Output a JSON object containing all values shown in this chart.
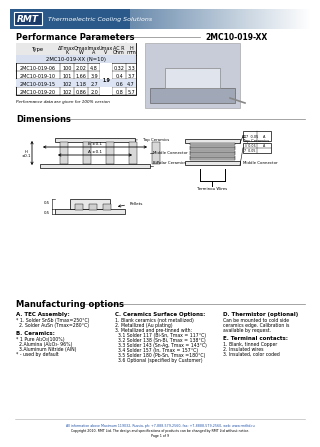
{
  "title": "2MC10-019-XX",
  "section_perf": "Performance Parameters",
  "section_dim": "Dimensions",
  "section_mfg": "Manufacturing options",
  "header_bg": "#2b5a8a",
  "table_headers_row1": [
    "Type",
    "ΔTmax",
    "Qmax",
    "Imax",
    "Umax",
    "AC R",
    "H"
  ],
  "table_headers_row2": [
    "",
    "K",
    "W",
    "A",
    "V",
    "Ohm",
    "mm"
  ],
  "table_subheader": "2MC10-019-XX (N=10)",
  "table_rows": [
    [
      "2MC10-019-06",
      "100",
      "2.02",
      "4.8",
      "",
      "0.32",
      "3.3"
    ],
    [
      "2MC10-019-10",
      "101",
      "1.66",
      "3.9",
      "1.9",
      "0.4",
      "3.7"
    ],
    [
      "2MC10-019-15",
      "102",
      "1.18",
      "2.7",
      "",
      "0.6",
      "4.7"
    ],
    [
      "2MC10-019-20",
      "102",
      "0.86",
      "2.0",
      "",
      "0.8",
      "5.7"
    ]
  ],
  "perf_note": "Performance data are given for 100% version",
  "mfg_col1_title": "A. TEC Assembly:",
  "mfg_col1": [
    "* 1. Solder SnSb (Tmax=250°C)",
    "  2. Solder AuSn (Tmax=280°C)"
  ],
  "mfg_col1b_title": "B. Ceramics:",
  "mfg_col1b": [
    "* 1 Pure Al₂O₃(100%)",
    "  2.Alumina (Al₂O₃- 96%)",
    "  3.Aluminum Nitride (AlN)",
    "* - used by default"
  ],
  "mfg_col2_title": "C. Ceramics Surface Options:",
  "mfg_col2": [
    "1. Blank ceramics (not metallized)",
    "2. Metallized (Au plating)",
    "3. Metallized and pre-tinned with:",
    "  3.1 Solder 117 (Bi-Sn, Tmax = 117°C)",
    "  3.2 Solder 138 (Sn-Bi, Tmax = 138°C)",
    "  3.3 Solder 143 (Sn-Ag, Tmax = 143°C)",
    "  3.4 Solder 157 (In, Tmax = 157°C)",
    "  3.5 Solder 180 (Pb-Sn, Tmax =180°C)",
    "  3.6 Optional (specified by Customer)"
  ],
  "mfg_col3_title": "D. Thermistor (optional)",
  "mfg_col3": [
    "Can be mounted to cold side",
    "ceramics edge. Calibration is",
    "available by request."
  ],
  "mfg_col3b_title": "E. Terminal contacts:",
  "mfg_col3b": [
    "1. Blank, tinned Copper",
    "2. Insulated wires",
    "3. Insulated, color coded"
  ],
  "footer_line1": "All information above Maximum 119032, Russia, ph: +7-888-579-2560, fax: +7-8888-579-2560, web: www.rmtltd.ru",
  "footer_line2": "Copyright 2010. RMT Ltd. The design and specifications of products can be changed by RMT Ltd without notice.",
  "footer_line3": "Page 1 of 9",
  "logo_color": "#2b5a8a",
  "tag_line": "Thermoelectric Cooling Solutions",
  "bg_color": "#ffffff"
}
